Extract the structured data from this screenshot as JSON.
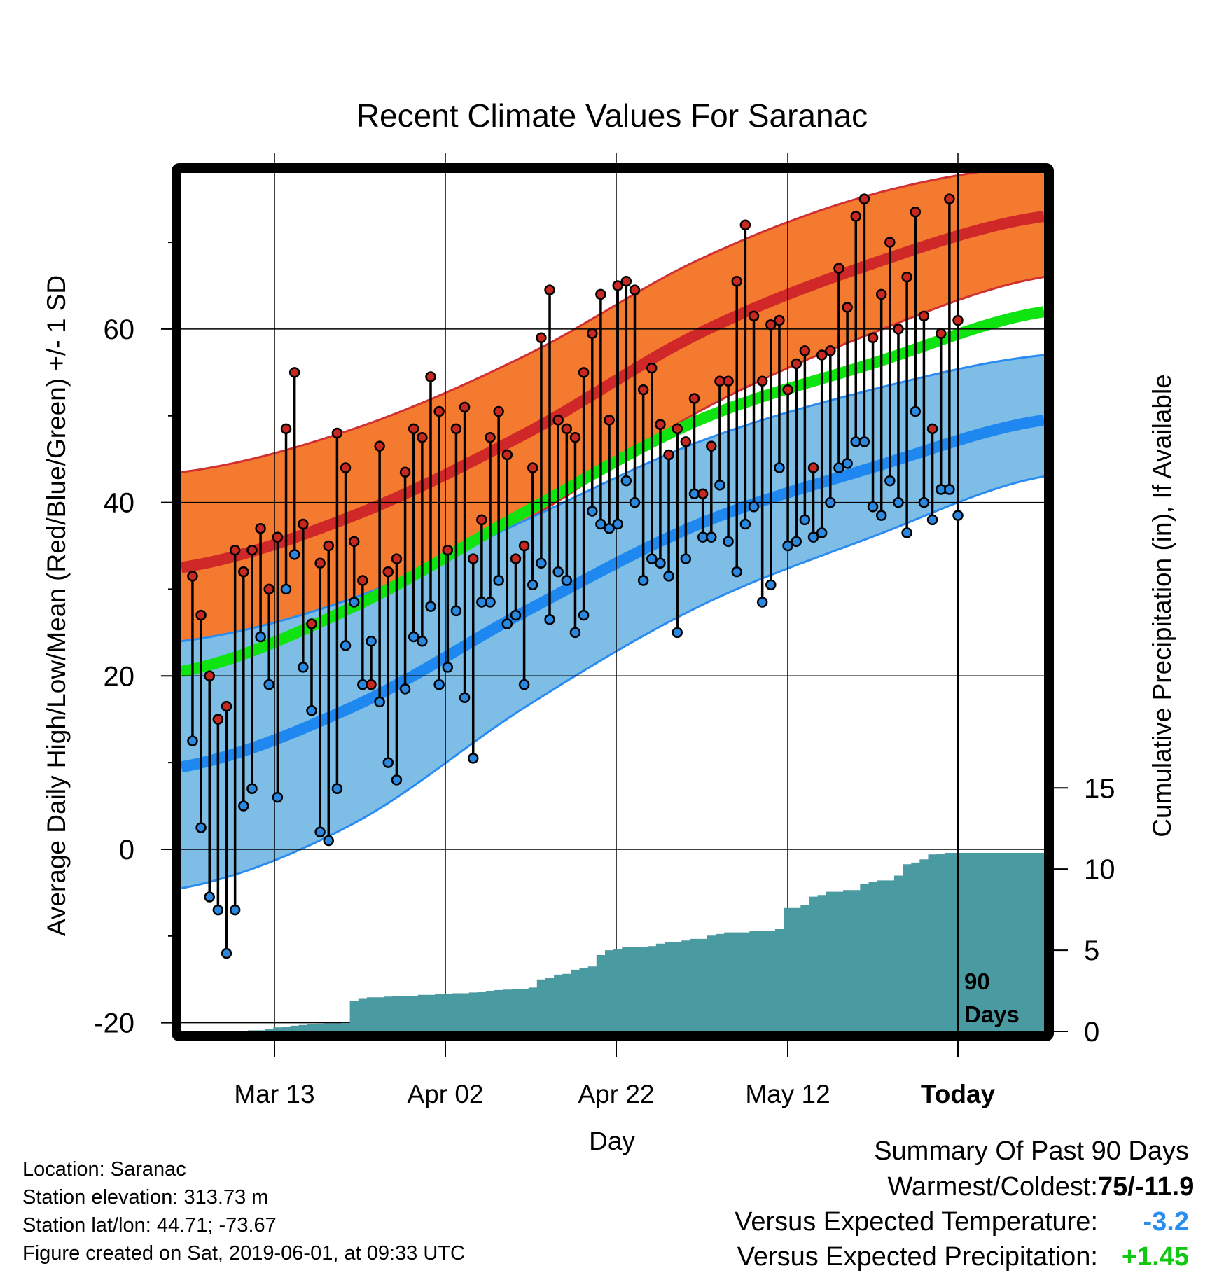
{
  "chart_data": {
    "type": "line",
    "title": "Recent Climate Values For Saranac",
    "xlabel": "Day",
    "ylabel": "Average Daily High/Low/Mean (Red/Blue/Green) +/- 1 SD",
    "y2label": "Cumulative Precipitation (in), If Available",
    "x_ticks": [
      "Mar 13",
      "Apr 02",
      "Apr 22",
      "May 12",
      "Today"
    ],
    "y_ticks": [
      -20,
      0,
      20,
      40,
      60
    ],
    "y2_ticks": [
      0,
      5,
      10,
      15
    ],
    "ylim": [
      -21,
      78
    ],
    "y2lim": [
      0,
      11
    ],
    "days_label": "90 Days",
    "grid": true,
    "normals": {
      "points": [
        0,
        20,
        40,
        60,
        80,
        100
      ],
      "high_mean": [
        32.5,
        38.5,
        48,
        59.5,
        67.5,
        73
      ],
      "high_upper": [
        43.5,
        48.5,
        57,
        68,
        75.5,
        79
      ],
      "high_lower": [
        23.5,
        28.5,
        38,
        50.5,
        59.5,
        66
      ],
      "low_mean": [
        9.5,
        16.5,
        27.5,
        37.5,
        44,
        49.5
      ],
      "low_upper": [
        24,
        29,
        38,
        47,
        53,
        57
      ],
      "low_lower": [
        -4.5,
        3,
        16.5,
        28,
        36,
        43
      ],
      "mean": [
        20.5,
        28,
        39,
        49.5,
        56,
        62
      ]
    },
    "highs": [
      31.5,
      27,
      20,
      15,
      16.5,
      34.5,
      32,
      34.5,
      37,
      30,
      36,
      48.5,
      55,
      37.5,
      26,
      33,
      35,
      48,
      44,
      35.5,
      31,
      19,
      46.5,
      32,
      33.5,
      43.5,
      48.5,
      47.5,
      54.5,
      50.5,
      34.5,
      48.5,
      51,
      33.5,
      38,
      47.5,
      50.5,
      45.5,
      33.5,
      35,
      44,
      59,
      64.5,
      49.5,
      48.5,
      47.5,
      55,
      59.5,
      64,
      49.5,
      65,
      65.5,
      64.5,
      53,
      55.5,
      49,
      45.5,
      48.5,
      47,
      52,
      41,
      46.5,
      54,
      54,
      65.5,
      72,
      61.5,
      54,
      60.5,
      61,
      53,
      56,
      57.5,
      44,
      57,
      57.5,
      67,
      62.5,
      73,
      75,
      59,
      64,
      70,
      60,
      66,
      73.5,
      61.5,
      48.5,
      59.5,
      75,
      61
    ],
    "lows": [
      12.5,
      2.5,
      -5.5,
      -7,
      -12,
      -7,
      5,
      7,
      24.5,
      19,
      6,
      30,
      34,
      21,
      16,
      2,
      1,
      7,
      23.5,
      28.5,
      19,
      24,
      17,
      10,
      8,
      18.5,
      24.5,
      24,
      28,
      19,
      21,
      27.5,
      17.5,
      10.5,
      28.5,
      28.5,
      31,
      26,
      27,
      19,
      30.5,
      33,
      26.5,
      32,
      31,
      25,
      27,
      39,
      37.5,
      37,
      37.5,
      42.5,
      40,
      31,
      33.5,
      33,
      31.5,
      25,
      33.5,
      41,
      36,
      36,
      42,
      35.5,
      32,
      37.5,
      39.5,
      28.5,
      30.5,
      44,
      35,
      35.5,
      38,
      36,
      36.5,
      40,
      44,
      44.5,
      47,
      47,
      39.5,
      38.5,
      42.5,
      40,
      36.5,
      50.5,
      40,
      38,
      41.5,
      41.5,
      38.5
    ],
    "precip": [
      0,
      0,
      0,
      0,
      0,
      0,
      0,
      0.07,
      0.07,
      0.15,
      0.25,
      0.3,
      0.35,
      0.4,
      0.45,
      0.48,
      0.5,
      0.5,
      0.52,
      1.9,
      2.05,
      2.1,
      2.1,
      2.15,
      2.2,
      2.2,
      2.2,
      2.25,
      2.25,
      2.3,
      2.3,
      2.35,
      2.35,
      2.4,
      2.45,
      2.5,
      2.55,
      2.58,
      2.6,
      2.62,
      2.7,
      3.2,
      3.3,
      3.5,
      3.55,
      3.8,
      3.9,
      4,
      4.7,
      5,
      5.05,
      5.2,
      5.2,
      5.2,
      5.25,
      5.4,
      5.5,
      5.5,
      5.6,
      5.7,
      5.7,
      5.9,
      6,
      6.1,
      6.1,
      6.1,
      6.2,
      6.2,
      6.2,
      6.3,
      7.6,
      7.6,
      7.8,
      8.3,
      8.4,
      8.6,
      8.6,
      8.7,
      8.7,
      9.1,
      9.2,
      9.3,
      9.3,
      9.6,
      10.3,
      10.4,
      10.6,
      10.9,
      10.95,
      11,
      11
    ]
  },
  "summary": {
    "heading": "Summary Of Past 90 Days",
    "rows": [
      {
        "label": "Warmest/Coldest:",
        "value": "75/-11.9"
      },
      {
        "label": "Versus Expected Temperature:",
        "value": "-3.2"
      },
      {
        "label": "Versus Expected Precipitation:",
        "value": "+1.45"
      }
    ]
  },
  "footer": {
    "location": "Location: Saranac",
    "elevation": "Station elevation: 313.73 m",
    "latlon": "Station lat/lon: 44.71; -73.67",
    "created": "Figure created on Sat, 2019-06-01, at 09:33 UTC"
  },
  "colors": {
    "high_band": "#f47a30",
    "high_edge": "#d03030",
    "high_mean": "#d02828",
    "low_band": "#7ebde6",
    "low_edge": "#2a8cf0",
    "low_mean": "#1e88f0",
    "mean_line": "#10e410",
    "precip_fill": "#4a9aa2",
    "high_dot": "#c82820",
    "low_dot": "#2a88e0",
    "temp_delta": "#2a8ef0",
    "precip_delta": "#10c810"
  }
}
